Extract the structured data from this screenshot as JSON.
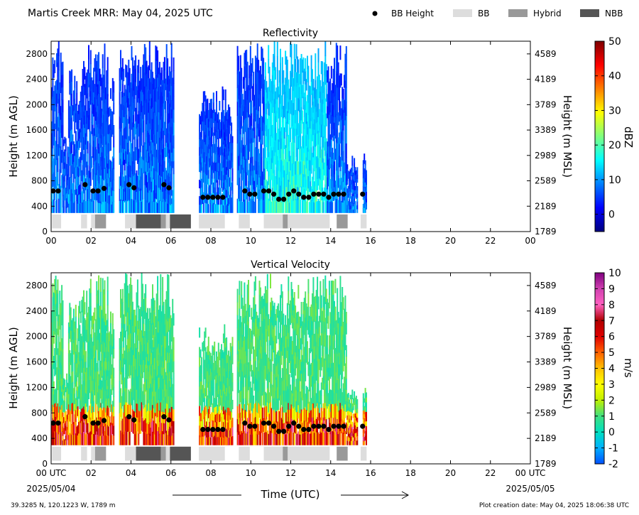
{
  "header": {
    "title": "Martis Creek MRR:  May 04, 2025 UTC",
    "legend": [
      {
        "label": "BB Height",
        "kind": "dot",
        "color": "#000000"
      },
      {
        "label": "BB",
        "kind": "box",
        "color": "#dddddd"
      },
      {
        "label": "Hybrid",
        "kind": "box",
        "color": "#999999"
      },
      {
        "label": "NBB",
        "kind": "box",
        "color": "#555555"
      }
    ]
  },
  "footer": {
    "location": "39.3285 N, 120.1223 W, 1789 m",
    "created": "Plot creation date: May 04, 2025 18:06:38 UTC",
    "xlabel": "Time (UTC)",
    "start_date": "2025/05/04",
    "end_date": "2025/05/05"
  },
  "chart_data": [
    {
      "type": "heatmap",
      "title": "Reflectivity",
      "ylabel": "Height (m AGL)",
      "ylabel_right": "Height (m MSL)",
      "xlim": [
        0,
        24
      ],
      "ylim": [
        0,
        3000
      ],
      "x_ticks": [
        "00",
        "02",
        "04",
        "06",
        "08",
        "10",
        "12",
        "14",
        "16",
        "18",
        "20",
        "22",
        "00"
      ],
      "y_ticks": [
        0,
        400,
        800,
        1200,
        1600,
        2000,
        2400,
        2800
      ],
      "y_ticks_right": [
        "1789",
        "2189",
        "2589",
        "2989",
        "3389",
        "3789",
        "4189",
        "4589"
      ],
      "colorbar": {
        "label": "dBZ",
        "min": -5,
        "max": 50,
        "ticks": [
          0,
          10,
          20,
          30,
          40,
          50
        ],
        "colors": [
          "#00007f",
          "#0000ff",
          "#007fff",
          "#00ffff",
          "#7fff7f",
          "#ffff00",
          "#ff7f00",
          "#ff0000",
          "#7f0000"
        ]
      },
      "field": "reflectivity"
    },
    {
      "type": "heatmap",
      "title": "Vertical Velocity",
      "ylabel": "Height (m AGL)",
      "ylabel_right": "Height (m MSL)",
      "xlim": [
        0,
        24
      ],
      "ylim": [
        0,
        3000
      ],
      "x_ticks": [
        "00 UTC",
        "02",
        "04",
        "06",
        "08",
        "10",
        "12",
        "14",
        "16",
        "18",
        "20",
        "22",
        "00 UTC"
      ],
      "y_ticks": [
        0,
        400,
        800,
        1200,
        1600,
        2000,
        2400,
        2800
      ],
      "y_ticks_right": [
        "1789",
        "2189",
        "2589",
        "2989",
        "3389",
        "3789",
        "4189",
        "4589"
      ],
      "colorbar": {
        "label": "m/s",
        "min": -2,
        "max": 10,
        "ticks": [
          -2,
          -1,
          0,
          1,
          2,
          3,
          4,
          5,
          6,
          7,
          8,
          9,
          10
        ],
        "colors": [
          "#0050ff",
          "#00b0ff",
          "#00e0c0",
          "#40e080",
          "#c0f000",
          "#ffff00",
          "#ffc000",
          "#ff6000",
          "#e00000",
          "#b00000",
          "#ff60c0",
          "#d040b0",
          "#800080"
        ]
      },
      "field": "velocity"
    }
  ],
  "echo_columns": [
    {
      "t0": 0.0,
      "t1": 0.55,
      "top": 3000
    },
    {
      "t0": 0.55,
      "t1": 0.85,
      "top": 1500
    },
    {
      "t0": 0.85,
      "t1": 1.7,
      "top": 2600
    },
    {
      "t0": 1.55,
      "t1": 2.8,
      "top": 3000
    },
    {
      "t0": 2.3,
      "t1": 3.1,
      "top": 2500
    },
    {
      "t0": 3.4,
      "t1": 5.0,
      "top": 3000
    },
    {
      "t0": 4.8,
      "t1": 5.6,
      "top": 2600
    },
    {
      "t0": 5.0,
      "t1": 6.1,
      "top": 3000
    },
    {
      "t0": 5.8,
      "t1": 6.0,
      "top": 2300
    },
    {
      "t0": 7.4,
      "t1": 8.9,
      "top": 2300
    },
    {
      "t0": 8.5,
      "t1": 9.1,
      "top": 2000
    },
    {
      "t0": 9.3,
      "t1": 10.4,
      "top": 3000
    },
    {
      "t0": 10.4,
      "t1": 14.8,
      "top": 3000
    },
    {
      "t0": 14.8,
      "t1": 15.35,
      "top": 1200
    },
    {
      "t0": 15.6,
      "t1": 15.8,
      "top": 1250
    }
  ],
  "bb_height_points": [
    {
      "t": 0.1,
      "h": 640
    },
    {
      "t": 0.35,
      "h": 640
    },
    {
      "t": 1.7,
      "h": 740
    },
    {
      "t": 2.1,
      "h": 640
    },
    {
      "t": 2.35,
      "h": 640
    },
    {
      "t": 2.65,
      "h": 680
    },
    {
      "t": 3.9,
      "h": 740
    },
    {
      "t": 4.15,
      "h": 690
    },
    {
      "t": 5.65,
      "h": 740
    },
    {
      "t": 5.9,
      "h": 690
    },
    {
      "t": 7.6,
      "h": 540
    },
    {
      "t": 7.85,
      "h": 540
    },
    {
      "t": 8.1,
      "h": 540
    },
    {
      "t": 8.35,
      "h": 540
    },
    {
      "t": 8.6,
      "h": 540
    },
    {
      "t": 9.7,
      "h": 640
    },
    {
      "t": 9.95,
      "h": 590
    },
    {
      "t": 10.2,
      "h": 590
    },
    {
      "t": 10.65,
      "h": 640
    },
    {
      "t": 10.9,
      "h": 640
    },
    {
      "t": 11.15,
      "h": 590
    },
    {
      "t": 11.4,
      "h": 510
    },
    {
      "t": 11.65,
      "h": 510
    },
    {
      "t": 11.9,
      "h": 590
    },
    {
      "t": 12.15,
      "h": 640
    },
    {
      "t": 12.4,
      "h": 590
    },
    {
      "t": 12.65,
      "h": 540
    },
    {
      "t": 12.9,
      "h": 540
    },
    {
      "t": 13.15,
      "h": 590
    },
    {
      "t": 13.4,
      "h": 590
    },
    {
      "t": 13.65,
      "h": 590
    },
    {
      "t": 13.9,
      "h": 540
    },
    {
      "t": 14.15,
      "h": 590
    },
    {
      "t": 14.4,
      "h": 590
    },
    {
      "t": 14.65,
      "h": 590
    },
    {
      "t": 15.6,
      "h": 590
    }
  ],
  "bb_type_segments": [
    {
      "t0": 0.05,
      "t1": 0.5,
      "type": "BB"
    },
    {
      "t0": 1.5,
      "t1": 1.8,
      "type": "BB"
    },
    {
      "t0": 2.0,
      "t1": 2.2,
      "type": "BB"
    },
    {
      "t0": 2.2,
      "t1": 2.75,
      "type": "Hybrid"
    },
    {
      "t0": 3.7,
      "t1": 4.25,
      "type": "BB"
    },
    {
      "t0": 4.25,
      "t1": 5.5,
      "type": "NBB"
    },
    {
      "t0": 5.5,
      "t1": 5.75,
      "type": "Hybrid"
    },
    {
      "t0": 5.75,
      "t1": 5.95,
      "type": "BB"
    },
    {
      "t0": 5.95,
      "t1": 7.0,
      "type": "NBB"
    },
    {
      "t0": 7.4,
      "t1": 8.7,
      "type": "BB"
    },
    {
      "t0": 9.4,
      "t1": 9.95,
      "type": "BB"
    },
    {
      "t0": 10.65,
      "t1": 11.6,
      "type": "BB"
    },
    {
      "t0": 11.6,
      "t1": 11.85,
      "type": "Hybrid"
    },
    {
      "t0": 11.85,
      "t1": 13.95,
      "type": "BB"
    },
    {
      "t0": 14.3,
      "t1": 14.85,
      "type": "Hybrid"
    },
    {
      "t0": 15.5,
      "t1": 15.8,
      "type": "BB"
    }
  ]
}
